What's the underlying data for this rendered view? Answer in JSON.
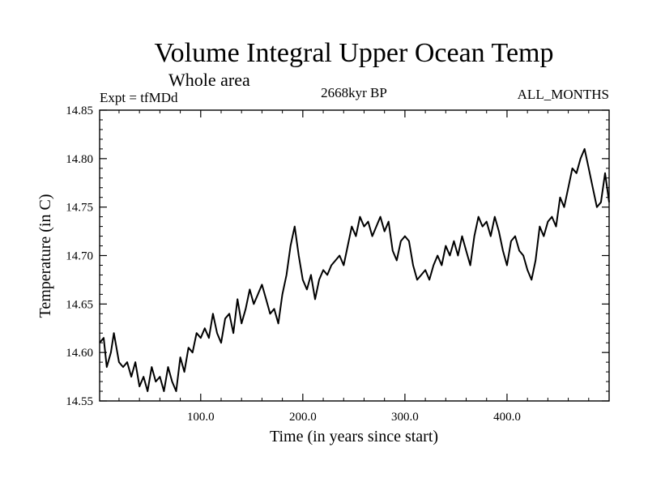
{
  "chart_data": {
    "type": "line",
    "title": "Volume Integral Upper Ocean Temp",
    "subtitle": "Whole area",
    "left_note": "Expt = tfMDd",
    "center_note": "2668kyr BP",
    "right_note": "ALL_MONTHS",
    "xlabel": "Time (in years since start)",
    "ylabel": "Temperature (in C)",
    "xlim": [
      1,
      500
    ],
    "ylim": [
      14.55,
      14.85
    ],
    "x_ticks": [
      100,
      200,
      300,
      400
    ],
    "x_tick_labels": [
      "100.0",
      "200.0",
      "300.0",
      "400.0"
    ],
    "y_ticks": [
      14.55,
      14.6,
      14.65,
      14.7,
      14.75,
      14.8,
      14.85
    ],
    "y_tick_labels": [
      "14.55",
      "14.60",
      "14.65",
      "14.70",
      "14.75",
      "14.80",
      "14.85"
    ],
    "series": [
      {
        "name": "Temperature",
        "x": [
          1,
          5,
          8,
          12,
          15,
          20,
          24,
          28,
          32,
          36,
          40,
          44,
          48,
          52,
          56,
          60,
          64,
          68,
          72,
          76,
          80,
          84,
          88,
          92,
          96,
          100,
          104,
          108,
          112,
          116,
          120,
          124,
          128,
          132,
          136,
          140,
          144,
          148,
          152,
          156,
          160,
          164,
          168,
          172,
          176,
          180,
          184,
          188,
          192,
          196,
          200,
          204,
          208,
          212,
          216,
          220,
          224,
          228,
          232,
          236,
          240,
          244,
          248,
          252,
          256,
          260,
          264,
          268,
          272,
          276,
          280,
          284,
          288,
          292,
          296,
          300,
          304,
          308,
          312,
          316,
          320,
          324,
          328,
          332,
          336,
          340,
          344,
          348,
          352,
          356,
          360,
          364,
          368,
          372,
          376,
          380,
          384,
          388,
          392,
          396,
          400,
          404,
          408,
          412,
          416,
          420,
          424,
          428,
          432,
          436,
          440,
          444,
          448,
          452,
          456,
          460,
          464,
          468,
          472,
          476,
          480,
          484,
          488,
          492,
          496,
          500
        ],
        "values": [
          14.61,
          14.615,
          14.585,
          14.6,
          14.62,
          14.59,
          14.585,
          14.59,
          14.575,
          14.59,
          14.565,
          14.575,
          14.56,
          14.585,
          14.57,
          14.575,
          14.56,
          14.585,
          14.57,
          14.56,
          14.595,
          14.58,
          14.605,
          14.6,
          14.62,
          14.615,
          14.625,
          14.615,
          14.64,
          14.62,
          14.61,
          14.635,
          14.64,
          14.62,
          14.655,
          14.63,
          14.645,
          14.665,
          14.65,
          14.66,
          14.67,
          14.655,
          14.64,
          14.645,
          14.63,
          14.66,
          14.68,
          14.71,
          14.73,
          14.7,
          14.675,
          14.665,
          14.68,
          14.655,
          14.675,
          14.685,
          14.68,
          14.69,
          14.695,
          14.7,
          14.69,
          14.71,
          14.73,
          14.72,
          14.74,
          14.73,
          14.735,
          14.72,
          14.73,
          14.74,
          14.725,
          14.735,
          14.705,
          14.695,
          14.715,
          14.72,
          14.715,
          14.69,
          14.675,
          14.68,
          14.685,
          14.675,
          14.69,
          14.7,
          14.69,
          14.71,
          14.7,
          14.715,
          14.7,
          14.72,
          14.705,
          14.69,
          14.72,
          14.74,
          14.73,
          14.735,
          14.72,
          14.74,
          14.725,
          14.705,
          14.69,
          14.715,
          14.72,
          14.705,
          14.7,
          14.685,
          14.675,
          14.695,
          14.73,
          14.72,
          14.735,
          14.74,
          14.73,
          14.76,
          14.75,
          14.77,
          14.79,
          14.785,
          14.8,
          14.81,
          14.79,
          14.77,
          14.75,
          14.755,
          14.785,
          14.755
        ]
      }
    ]
  }
}
